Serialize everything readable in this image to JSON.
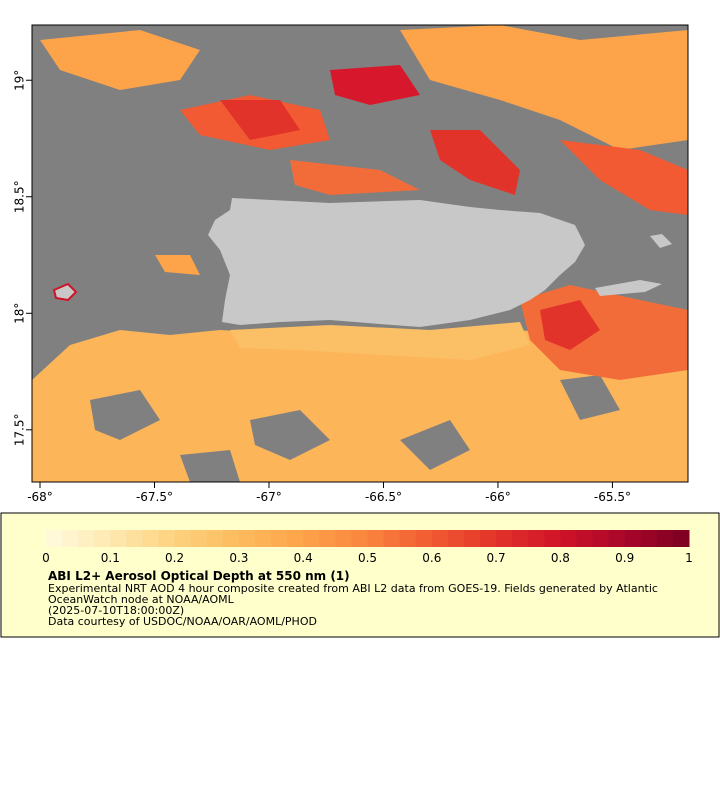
{
  "chart_data": {
    "type": "map",
    "xlim": [
      -68.035,
      -65.17
    ],
    "ylim": [
      17.276,
      19.237
    ],
    "xticks": [
      {
        "value": -68,
        "label": "-68°"
      },
      {
        "value": -67.5,
        "label": "-67.5°"
      },
      {
        "value": -67,
        "label": "-67°"
      },
      {
        "value": -66.5,
        "label": "-66.5°"
      },
      {
        "value": -66,
        "label": "-66°"
      },
      {
        "value": -65.5,
        "label": "-65.5°"
      }
    ],
    "yticks": [
      {
        "value": 17.5,
        "label": "17.5°"
      },
      {
        "value": 18,
        "label": "18°"
      },
      {
        "value": 18.5,
        "label": "18.5°"
      },
      {
        "value": 19,
        "label": "19°"
      }
    ],
    "colorbar": {
      "lim": [
        0,
        1
      ],
      "ticks": [
        0,
        0.1,
        0.2,
        0.3,
        0.4,
        0.5,
        0.6,
        0.7,
        0.8,
        0.9,
        1
      ],
      "colors": [
        "#fffbe0",
        "#fee9b0",
        "#fed27f",
        "#fdbb5e",
        "#fda349",
        "#f9843d",
        "#f15a32",
        "#e2332a",
        "#cf1328",
        "#a8062a",
        "#7a0020"
      ]
    },
    "title": "ABI L2+ Aerosol Optical Depth at 550 nm (1)",
    "description": [
      "Experimental NRT AOD 4 hour composite created from ABI L2 data from GOES-19. Fields generated by Atlantic",
      "OceanWatch node at NOAA/AOML",
      "(2025-07-10T18:00:00Z)",
      "Data courtesy of USDOC/NOAA/OAR/AOML/PHOD"
    ]
  }
}
